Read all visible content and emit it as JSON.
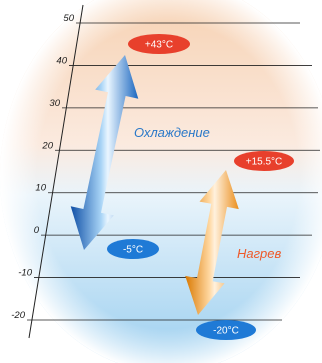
{
  "scale": {
    "ticks": [
      "50",
      "40",
      "30",
      "20",
      "10",
      "0",
      "-10",
      "-20"
    ],
    "range": [
      -20,
      50
    ]
  },
  "cooling": {
    "label": "Охлаждение",
    "max_badge": "+43°C",
    "min_badge": "-5°C",
    "max_value": 43,
    "min_value": -5,
    "label_color": "#2a78c8",
    "arrow_color": "#1f6fc4",
    "max_badge_color": "#e8402c",
    "min_badge_color": "#1f7ad6"
  },
  "heating": {
    "label": "Нагрев",
    "max_badge": "+15.5°C",
    "min_badge": "-20°C",
    "max_value": 15.5,
    "min_value": -20,
    "label_color": "#ee5a2a",
    "arrow_color": "#f0a038",
    "max_badge_color": "#e8402c",
    "min_badge_color": "#1f7ad6"
  },
  "background": {
    "top_color": "#f4c8a4",
    "bottom_color": "#9fd0ef"
  }
}
